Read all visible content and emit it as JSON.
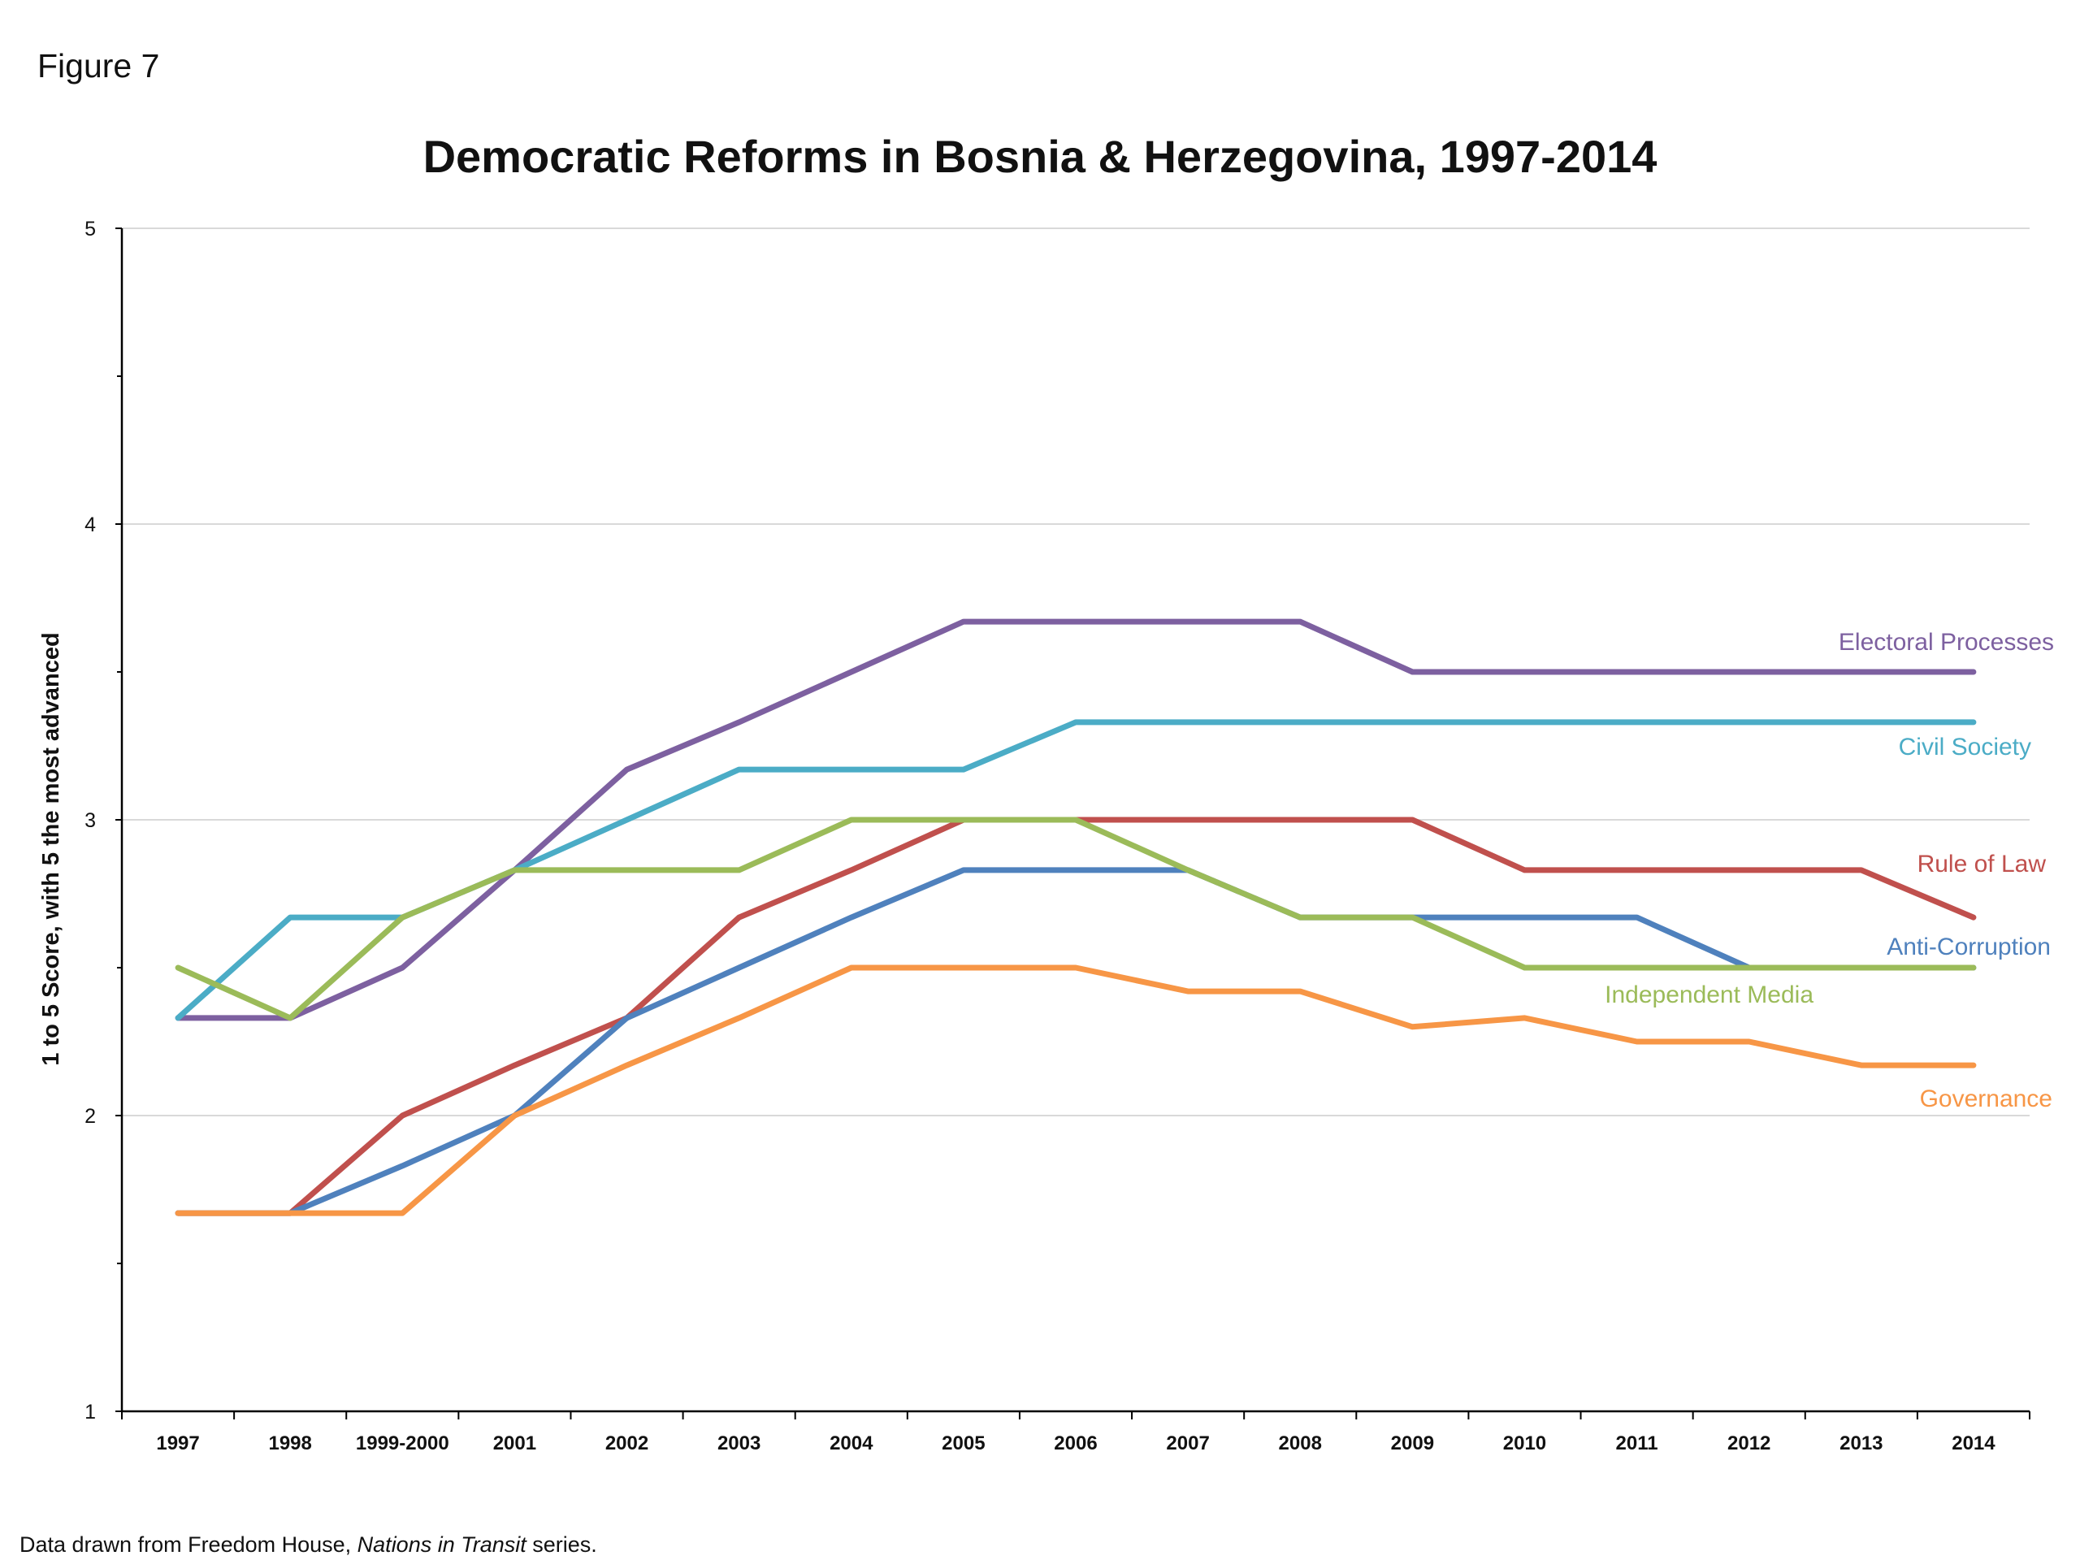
{
  "figure_label": "Figure 7",
  "source_note": {
    "prefix": "Data drawn from Freedom House, ",
    "italic": "Nations in Transit",
    "suffix": " series."
  },
  "chart_data": {
    "type": "line",
    "title": "Democratic Reforms in Bosnia & Herzegovina, 1997-2014",
    "xlabel": "",
    "ylabel": "1 to 5 Score, with 5 the most advanced",
    "ylim": [
      1,
      5
    ],
    "yticks": [
      1,
      2,
      3,
      4,
      5
    ],
    "grid": "horizontal",
    "legend": "inline labels at right end of lines",
    "categories": [
      "1997",
      "1998",
      "1999-2000",
      "2001",
      "2002",
      "2003",
      "2004",
      "2005",
      "2006",
      "2007",
      "2008",
      "2009",
      "2010",
      "2011",
      "2012",
      "2013",
      "2014"
    ],
    "series": [
      {
        "name": "Electoral Processes",
        "color": "#7d60a0",
        "values": [
          2.33,
          2.33,
          2.5,
          2.83,
          3.17,
          3.33,
          3.5,
          3.67,
          3.67,
          3.67,
          3.67,
          3.5,
          3.5,
          3.5,
          3.5,
          3.5,
          3.5
        ]
      },
      {
        "name": "Civil Society",
        "color": "#4bacc6",
        "values": [
          2.33,
          2.67,
          2.67,
          2.83,
          3.0,
          3.17,
          3.17,
          3.17,
          3.33,
          3.33,
          3.33,
          3.33,
          3.33,
          3.33,
          3.33,
          3.33,
          3.33
        ]
      },
      {
        "name": "Rule of Law",
        "color": "#c0504d",
        "values": [
          1.67,
          1.67,
          2.0,
          2.17,
          2.33,
          2.67,
          2.83,
          3.0,
          3.0,
          3.0,
          3.0,
          3.0,
          2.83,
          2.83,
          2.83,
          2.83,
          2.67
        ]
      },
      {
        "name": "Anti-Corruption",
        "color": "#4f81bd",
        "values": [
          1.67,
          1.67,
          1.83,
          2.0,
          2.33,
          2.5,
          2.67,
          2.83,
          2.83,
          2.83,
          2.67,
          2.67,
          2.67,
          2.67,
          2.5,
          2.5,
          2.5
        ]
      },
      {
        "name": "Independent Media",
        "color": "#9bbb59",
        "values": [
          2.5,
          2.33,
          2.67,
          2.83,
          2.83,
          2.83,
          3.0,
          3.0,
          3.0,
          2.83,
          2.67,
          2.67,
          2.5,
          2.5,
          2.5,
          2.5,
          2.5
        ]
      },
      {
        "name": "Governance",
        "color": "#f79646",
        "values": [
          1.67,
          1.67,
          1.67,
          2.0,
          2.17,
          2.33,
          2.5,
          2.5,
          2.5,
          2.42,
          2.42,
          2.3,
          2.33,
          2.25,
          2.25,
          2.17,
          2.17
        ]
      }
    ]
  }
}
